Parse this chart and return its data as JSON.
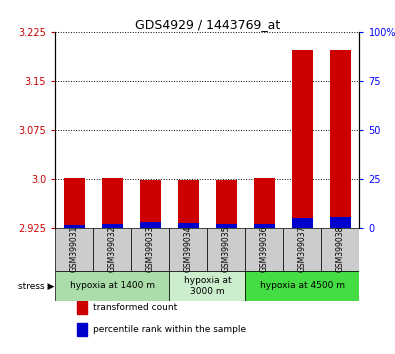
{
  "title": "GDS4929 / 1443769_at",
  "samples": [
    "GSM399031",
    "GSM399032",
    "GSM399033",
    "GSM399034",
    "GSM399035",
    "GSM399036",
    "GSM399037",
    "GSM399038"
  ],
  "transformed_count": [
    3.002,
    3.002,
    2.999,
    2.999,
    2.999,
    3.001,
    3.198,
    3.197
  ],
  "percentile_rank": [
    1.5,
    2.0,
    3.0,
    2.5,
    2.0,
    2.0,
    5.0,
    5.5
  ],
  "ylim_left": [
    2.925,
    3.225
  ],
  "ylim_right": [
    0,
    100
  ],
  "yticks_left": [
    2.925,
    3.0,
    3.075,
    3.15,
    3.225
  ],
  "yticks_right": [
    0,
    25,
    50,
    75,
    100
  ],
  "bar_color_red": "#cc0000",
  "bar_color_blue": "#0000cc",
  "bar_width": 0.55,
  "group_configs": [
    {
      "indices": [
        0,
        1,
        2
      ],
      "label": "hypoxia at 1400 m",
      "color": "#aaddaa"
    },
    {
      "indices": [
        3,
        4
      ],
      "label": "hypoxia at\n3000 m",
      "color": "#cceecc"
    },
    {
      "indices": [
        5,
        6,
        7
      ],
      "label": "hypoxia at 4500 m",
      "color": "#44dd44"
    }
  ],
  "legend_items": [
    {
      "color": "#cc0000",
      "label": "transformed count"
    },
    {
      "color": "#0000cc",
      "label": "percentile rank within the sample"
    }
  ],
  "grid_color": "black",
  "background_color": "#ffffff",
  "sample_box_color": "#cccccc",
  "stress_label": "stress"
}
